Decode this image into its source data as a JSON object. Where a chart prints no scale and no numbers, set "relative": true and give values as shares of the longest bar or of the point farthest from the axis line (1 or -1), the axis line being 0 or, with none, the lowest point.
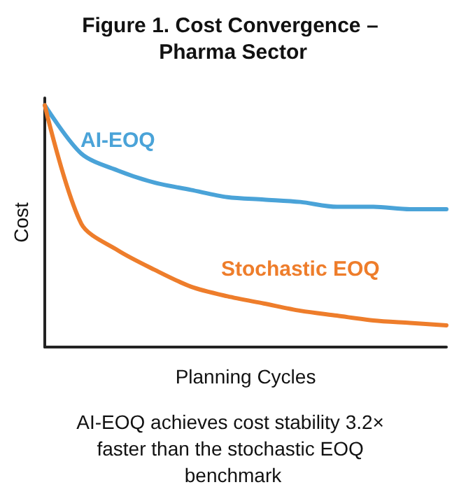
{
  "chart_data": {
    "type": "line",
    "title": "Figure 1. Cost Convergence – Pharma Sector",
    "xlabel": "Planning Cycles",
    "ylabel": "Cost",
    "relative": true,
    "grid": false,
    "legend": false,
    "marker": "none",
    "line_style": "solid",
    "categories": [
      null,
      null,
      null,
      null,
      null,
      null,
      null,
      null,
      null,
      null,
      null,
      null
    ],
    "series": [
      {
        "name": "AI-EOQ",
        "color": "#4aa3d8",
        "values": [
          1,
          0.8,
          0.73,
          0.68,
          0.65,
          0.62,
          0.61,
          0.6,
          0.58,
          0.58,
          0.57,
          0.57
        ]
      },
      {
        "name": "Stochastic EOQ",
        "color": "#ee7d2b",
        "values": [
          1,
          0.51,
          0.4,
          0.32,
          0.25,
          0.21,
          0.18,
          0.15,
          0.13,
          0.11,
          0.1,
          0.09
        ]
      }
    ],
    "annotations": [
      "AI-EOQ achieves cost stability 3.2× faster than the stochastic EOQ benchmark"
    ]
  }
}
